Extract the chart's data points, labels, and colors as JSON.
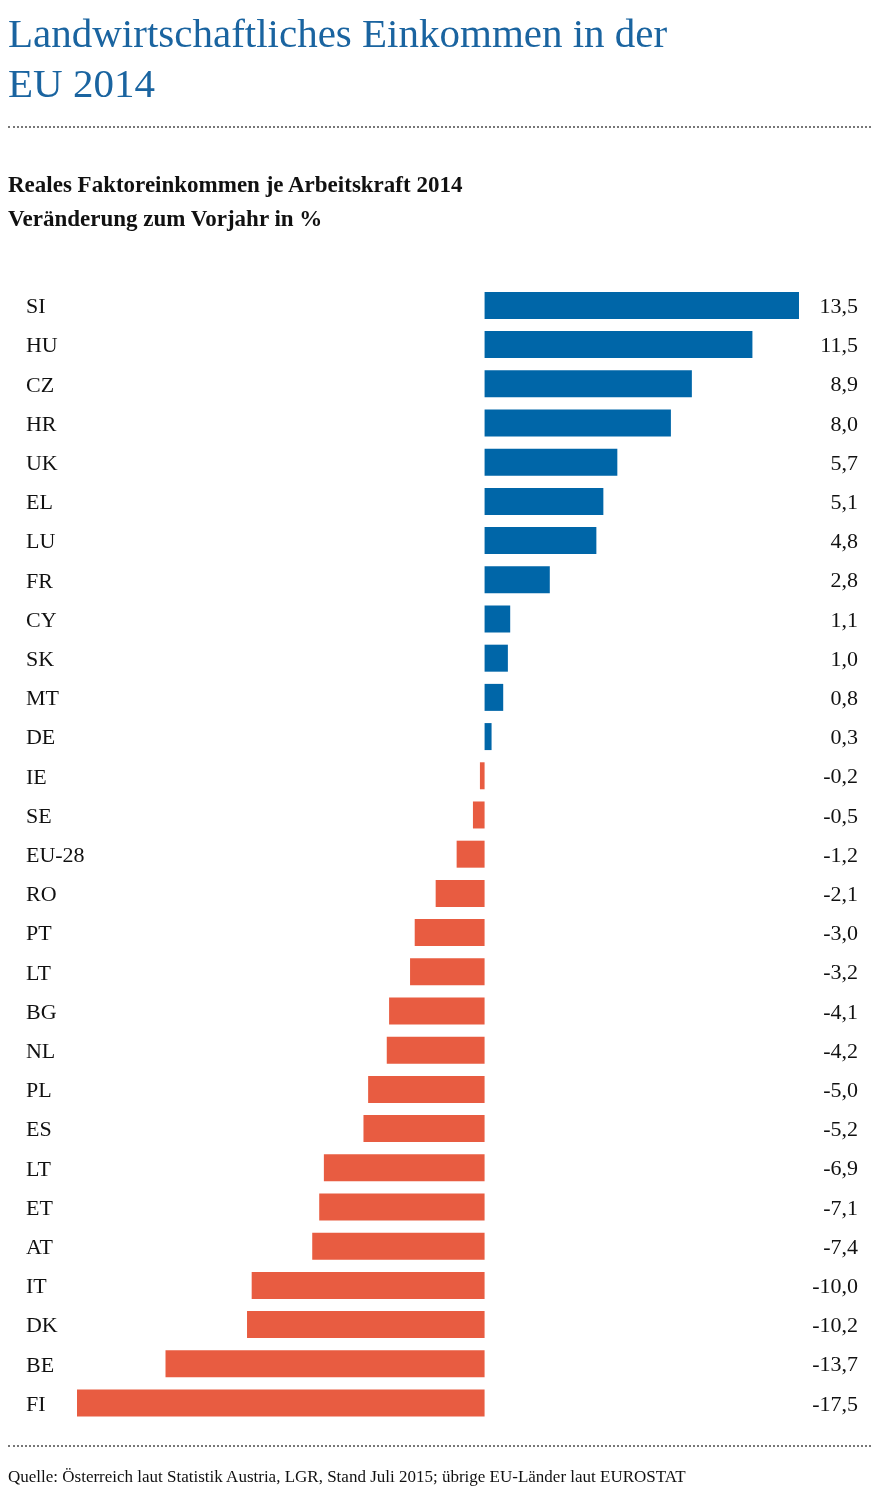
{
  "chart_data": {
    "type": "bar",
    "orientation": "horizontal",
    "title": "Landwirtschaftliches Einkommen in der EU 2014",
    "subtitle": "Reales Faktoreinkommen je Arbeitskraft 2014\nVeränderung zum Vorjahr in %",
    "categories": [
      "SI",
      "HU",
      "CZ",
      "HR",
      "UK",
      "EL",
      "LU",
      "FR",
      "CY",
      "SK",
      "MT",
      "DE",
      "IE",
      "SE",
      "EU-28",
      "RO",
      "PT",
      "LT",
      "BG",
      "NL",
      "PL",
      "ES",
      "LT",
      "ET",
      "AT",
      "IT",
      "DK",
      "BE",
      "FI"
    ],
    "values": [
      13.5,
      11.5,
      8.9,
      8.0,
      5.7,
      5.1,
      4.8,
      2.8,
      1.1,
      1.0,
      0.8,
      0.3,
      -0.2,
      -0.5,
      -1.2,
      -2.1,
      -3.0,
      -3.2,
      -4.1,
      -4.2,
      -5.0,
      -5.2,
      -6.9,
      -7.1,
      -7.4,
      -10.0,
      -10.2,
      -13.7,
      -17.5
    ],
    "colors": [
      "#0066a8",
      "#0066a8",
      "#0066a8",
      "#0066a8",
      "#0066a8",
      "#0066a8",
      "#0066a8",
      "#0066a8",
      "#0066a8",
      "#0066a8",
      "#0066a8",
      "#0066a8",
      "#e85c41",
      "#e85c41",
      "#e85c41",
      "#e85c41",
      "#e85c41",
      "#e85c41",
      "#e85c41",
      "#e85c41",
      "#e85c41",
      "#e85c41",
      "#e85c41",
      "#e85c41",
      "#e85c41",
      "#e85c41",
      "#e85c41",
      "#e85c41",
      "#e85c41"
    ],
    "value_labels": [
      "13,5",
      "11,5",
      "8,9",
      "8,0",
      "5,7",
      "5,1",
      "4,8",
      "2,8",
      "1,1",
      "1,0",
      "0,8",
      "0,3",
      "-0,2",
      "-0,5",
      "-1,2",
      "-2,1",
      "-3,0",
      "-3,2",
      "-4,1",
      "-4,2",
      "-5,0",
      "-5,2",
      "-6,9",
      "-7,1",
      "-7,4",
      "-10,0",
      "-10,2",
      "-13,7",
      "-17,5"
    ],
    "annotations": [
      "Quelle: Österreich laut Statistik Austria, LGR, Stand Juli 2015; übrige EU-Länder laut EUROSTAT"
    ]
  }
}
